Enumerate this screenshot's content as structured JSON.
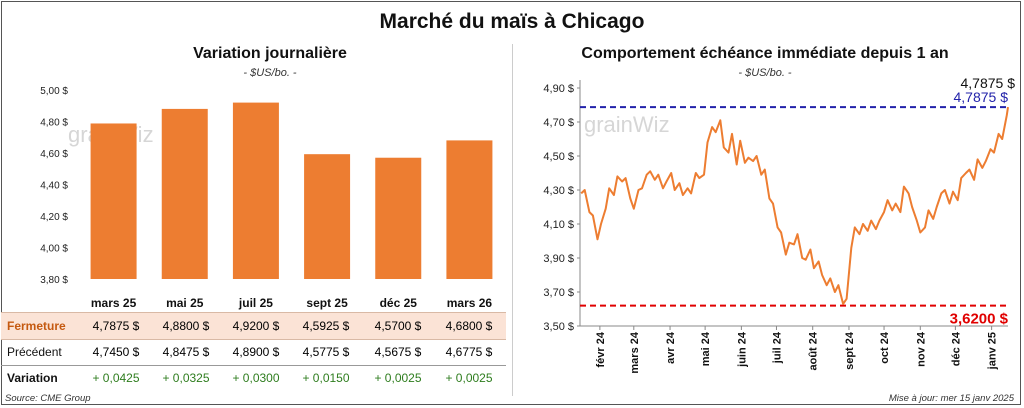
{
  "title": "Marché du maïs à Chicago",
  "left": {
    "title": "Variation journalière",
    "unit": "- $US/bo. -",
    "watermark": "grainWiz",
    "yticks": [
      "5,00 $",
      "4,80 $",
      "4,60 $",
      "4,40 $",
      "4,20 $",
      "4,00 $",
      "3,80 $"
    ],
    "chart_data": {
      "type": "bar",
      "categories": [
        "mars 25",
        "mai 25",
        "juil 25",
        "sept 25",
        "déc 25",
        "mars 26"
      ],
      "values": [
        4.7875,
        4.88,
        4.92,
        4.5925,
        4.57,
        4.68
      ],
      "ylim": [
        3.8,
        5.0
      ],
      "color": "#ED7D31"
    },
    "table": {
      "rows": [
        {
          "label": "Fermeture",
          "values": [
            "4,7875  $",
            "4,8800  $",
            "4,9200  $",
            "4,5925  $",
            "4,5700  $",
            "4,6800  $"
          ]
        },
        {
          "label": "Précédent",
          "values": [
            "4,7450  $",
            "4,8475  $",
            "4,8900  $",
            "4,5775  $",
            "4,5675  $",
            "4,6775  $"
          ]
        },
        {
          "label": "Variation",
          "values": [
            "+ 0,0425",
            "+ 0,0325",
            "+ 0,0300",
            "+ 0,0150",
            "+ 0,0025",
            "+ 0,0025"
          ]
        }
      ],
      "highlight_color": "#FBE3D6",
      "label_color": "#C55A11",
      "positive_color": "#2E7D1E"
    },
    "source": "Source: CME Group"
  },
  "right": {
    "title": "Comportement  échéance immédiate depuis 1 an",
    "unit": "- $US/bo. -",
    "watermark": "grainWiz",
    "yticks": [
      "4,90 $",
      "4,70 $",
      "4,50 $",
      "4,30 $",
      "4,10 $",
      "3,90 $",
      "3,70 $",
      "3,50 $"
    ],
    "xticks": [
      "févr 24",
      "mars 24",
      "avr 24",
      "mai 24",
      "juin 24",
      "juil 24",
      "août 24",
      "sept 24",
      "oct 24",
      "nov 24",
      "déc 24",
      "janv 25"
    ],
    "last_label": "4,7875 $",
    "high_label": "4,7875 $",
    "low_label": "3,6200 $",
    "high_color": "#2222AA",
    "low_color": "#E00000",
    "line_color": "#ED7D31",
    "update": "Mise à jour: mer 15 janv 2025",
    "chart_data": {
      "type": "line",
      "ylim": [
        3.5,
        4.9
      ],
      "xlim": [
        "2024-01-15",
        "2025-01-15"
      ],
      "reference_lines": [
        4.7875,
        3.62
      ],
      "x": [
        "2024-01-16",
        "2024-01-19",
        "2024-01-23",
        "2024-01-26",
        "2024-01-30",
        "2024-02-02",
        "2024-02-06",
        "2024-02-09",
        "2024-02-13",
        "2024-02-16",
        "2024-02-20",
        "2024-02-23",
        "2024-02-27",
        "2024-03-01",
        "2024-03-05",
        "2024-03-08",
        "2024-03-12",
        "2024-03-15",
        "2024-03-19",
        "2024-03-22",
        "2024-03-26",
        "2024-03-29",
        "2024-04-02",
        "2024-04-05",
        "2024-04-09",
        "2024-04-12",
        "2024-04-16",
        "2024-04-19",
        "2024-04-23",
        "2024-04-26",
        "2024-04-30",
        "2024-05-03",
        "2024-05-07",
        "2024-05-10",
        "2024-05-14",
        "2024-05-17",
        "2024-05-21",
        "2024-05-24",
        "2024-05-28",
        "2024-05-31",
        "2024-06-04",
        "2024-06-07",
        "2024-06-11",
        "2024-06-14",
        "2024-06-18",
        "2024-06-21",
        "2024-06-25",
        "2024-06-28",
        "2024-07-02",
        "2024-07-05",
        "2024-07-09",
        "2024-07-12",
        "2024-07-16",
        "2024-07-19",
        "2024-07-23",
        "2024-07-26",
        "2024-07-30",
        "2024-08-02",
        "2024-08-06",
        "2024-08-09",
        "2024-08-13",
        "2024-08-16",
        "2024-08-20",
        "2024-08-23",
        "2024-08-27",
        "2024-08-30",
        "2024-09-03",
        "2024-09-06",
        "2024-09-10",
        "2024-09-13",
        "2024-09-17",
        "2024-09-20",
        "2024-09-24",
        "2024-09-27",
        "2024-10-01",
        "2024-10-04",
        "2024-10-08",
        "2024-10-11",
        "2024-10-15",
        "2024-10-18",
        "2024-10-22",
        "2024-10-25",
        "2024-10-29",
        "2024-11-01",
        "2024-11-05",
        "2024-11-08",
        "2024-11-12",
        "2024-11-15",
        "2024-11-19",
        "2024-11-22",
        "2024-11-26",
        "2024-11-29",
        "2024-12-03",
        "2024-12-06",
        "2024-12-10",
        "2024-12-13",
        "2024-12-17",
        "2024-12-20",
        "2024-12-24",
        "2024-12-27",
        "2024-12-31",
        "2025-01-03",
        "2025-01-07",
        "2025-01-10",
        "2025-01-14",
        "2025-01-15"
      ],
      "y": [
        4.28,
        4.3,
        4.17,
        4.15,
        4.01,
        4.1,
        4.19,
        4.31,
        4.27,
        4.38,
        4.35,
        4.37,
        4.25,
        4.19,
        4.3,
        4.31,
        4.39,
        4.41,
        4.36,
        4.39,
        4.31,
        4.35,
        4.4,
        4.3,
        4.34,
        4.27,
        4.31,
        4.28,
        4.4,
        4.37,
        4.39,
        4.58,
        4.67,
        4.64,
        4.71,
        4.55,
        4.52,
        4.63,
        4.45,
        4.59,
        4.46,
        4.49,
        4.47,
        4.5,
        4.39,
        4.42,
        4.25,
        4.22,
        4.08,
        4.05,
        3.92,
        3.99,
        3.98,
        4.04,
        3.9,
        3.89,
        3.95,
        3.84,
        3.88,
        3.8,
        3.74,
        3.78,
        3.7,
        3.74,
        3.63,
        3.66,
        3.96,
        4.08,
        4.04,
        4.1,
        4.06,
        4.12,
        4.07,
        4.12,
        4.17,
        4.24,
        4.18,
        4.22,
        4.17,
        4.32,
        4.28,
        4.2,
        4.12,
        4.05,
        4.08,
        4.18,
        4.13,
        4.2,
        4.28,
        4.3,
        4.22,
        4.29,
        4.24,
        4.37,
        4.4,
        4.42,
        4.36,
        4.48,
        4.43,
        4.47,
        4.54,
        4.52,
        4.63,
        4.6,
        4.74,
        4.7875
      ]
    }
  }
}
